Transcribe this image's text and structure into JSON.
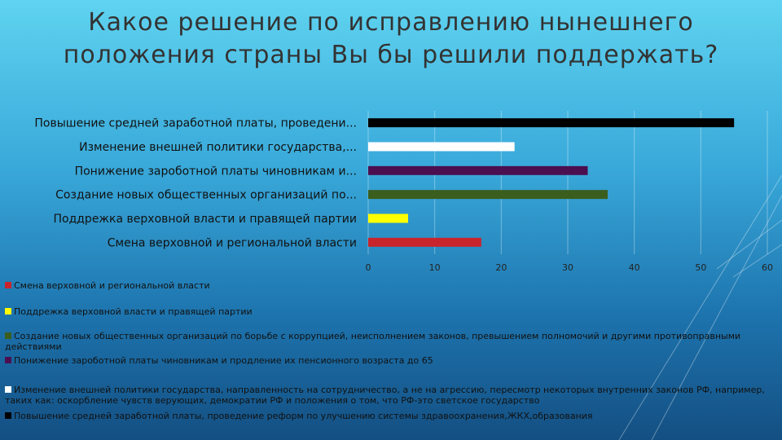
{
  "title": "Какое решение по исправлению нынешнего положения страны Вы бы решили поддержать?",
  "chart_data": {
    "type": "bar",
    "orientation": "horizontal",
    "categories": [
      "Повышение средней заработной платы, проведени...",
      "Изменение внешней политики государства,...",
      "Понижение  зароботной платы чиновникам и...",
      "Создание новых общественных организаций по...",
      "Поддрежка верховной власти и правящей партии",
      "Смена верховной и региональной власти"
    ],
    "values": [
      55,
      22,
      33,
      36,
      6,
      17
    ],
    "colors": [
      "#000000",
      "#ffffff",
      "#4b0f4f",
      "#3b5e1e",
      "#ffff00",
      "#c8242c"
    ],
    "xlim": [
      0,
      60
    ],
    "xticks": [
      0,
      10,
      20,
      30,
      40,
      50,
      60
    ],
    "grid": true,
    "legend_position": "bottom",
    "legend": [
      {
        "label": "Смена верховной и региональной власти",
        "color": "#c8242c"
      },
      {
        "label": "Поддрежка верховной власти и правящей партии",
        "color": "#ffff00"
      },
      {
        "label": "Создание новых общественных организаций по борьбе с коррупцией, неисполнением законов, превышением полномочий и другими противоправными действиями",
        "color": "#3b5e1e"
      },
      {
        "label": "Понижение  зароботной платы чиновникам и продление их пенсионного возраста до 65",
        "color": "#4b0f4f"
      },
      {
        "label": "Изменение внешней политики государства, направленность на сотрудничество, а не на агрессию, пересмотр некоторых внутренних законов РФ, например, таких как: оскорбление чувств верующих, демократии РФ и положения о том, что РФ-это светское государство",
        "color": "#ffffff"
      },
      {
        "label": "Повышение средней заработной платы, проведение реформ по улучшению системы здравоохранения,ЖКХ,образования",
        "color": "#000000"
      }
    ]
  }
}
